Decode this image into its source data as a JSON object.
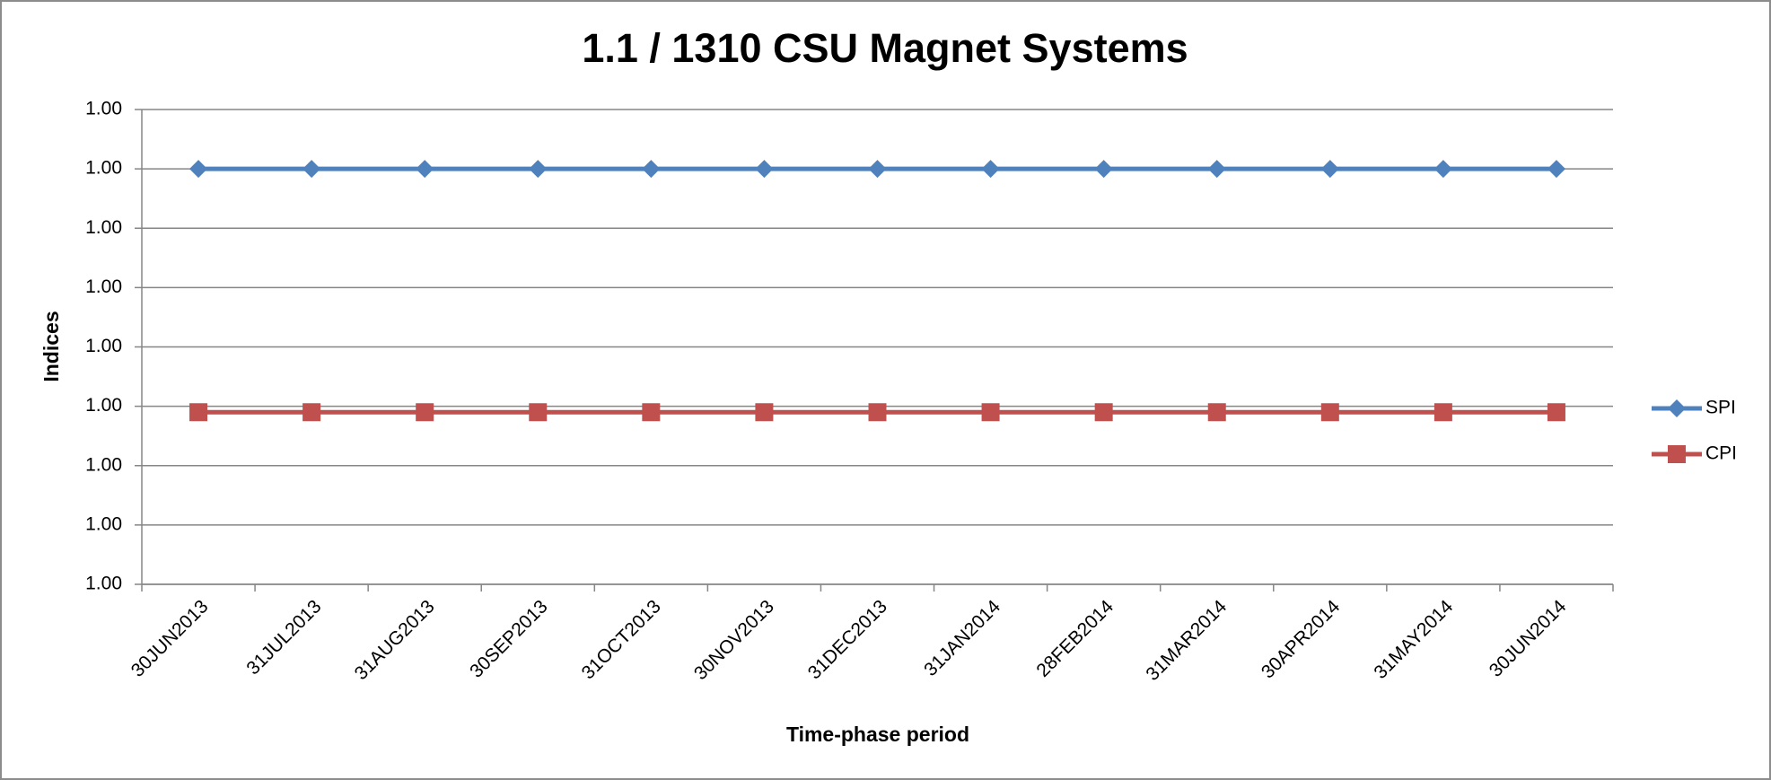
{
  "chart_data": {
    "type": "line",
    "title": "1.1 / 1310 CSU Magnet Systems",
    "x_label": "Time-phase period",
    "y_label": "Indices",
    "categories": [
      "30JUN2013",
      "31JUL2013",
      "31AUG2013",
      "30SEP2013",
      "31OCT2013",
      "30NOV2013",
      "31DEC2013",
      "31JAN2014",
      "28FEB2014",
      "31MAR2014",
      "30APR2014",
      "31MAY2014",
      "30JUN2014"
    ],
    "series": [
      {
        "name": "SPI",
        "color": "#4f81bd",
        "marker": "diamond",
        "values": [
          1.003,
          1.003,
          1.003,
          1.003,
          1.003,
          1.003,
          1.003,
          1.003,
          1.003,
          1.003,
          1.003,
          1.003,
          1.003
        ]
      },
      {
        "name": "CPI",
        "color": "#c0504d",
        "marker": "square",
        "values": [
          0.9989,
          0.9989,
          0.9989,
          0.9989,
          0.9989,
          0.9989,
          0.9989,
          0.9989,
          0.9989,
          0.9989,
          0.9989,
          0.9989,
          0.9989
        ]
      }
    ],
    "ylim": [
      0.996,
      1.004
    ],
    "yticks": [
      {
        "value": 0.996,
        "label": "1.00"
      },
      {
        "value": 0.997,
        "label": "1.00"
      },
      {
        "value": 0.998,
        "label": "1.00"
      },
      {
        "value": 0.999,
        "label": "1.00"
      },
      {
        "value": 1.0,
        "label": "1.00"
      },
      {
        "value": 1.001,
        "label": "1.00"
      },
      {
        "value": 1.002,
        "label": "1.00"
      },
      {
        "value": 1.003,
        "label": "1.00"
      },
      {
        "value": 1.004,
        "label": "1.00"
      }
    ],
    "grid": true,
    "legend": "right"
  }
}
